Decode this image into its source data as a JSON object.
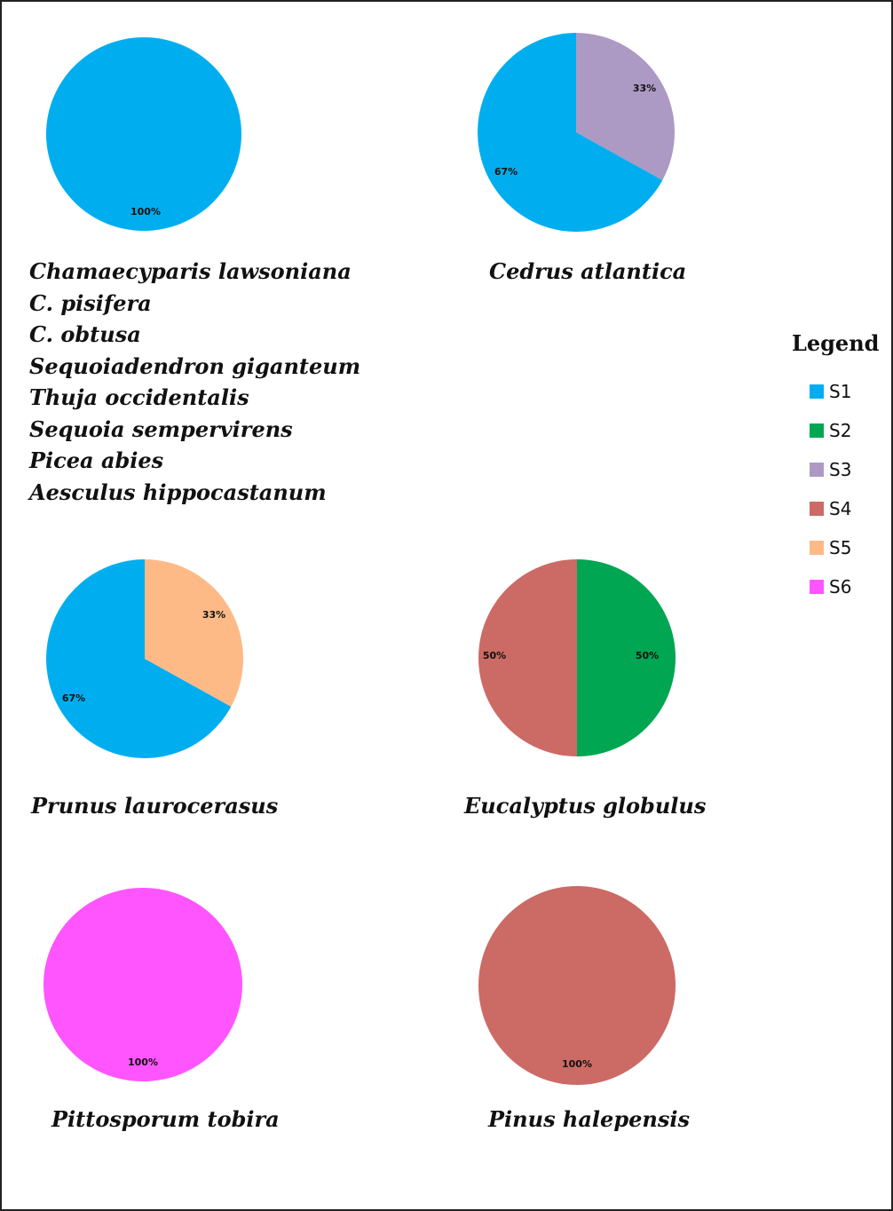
{
  "colors": {
    "S1": "#00AEEF",
    "S2": "#00A651",
    "S3": "#AC9AC4",
    "S4": "#CC6A66",
    "S5": "#FDBA87",
    "S6": "#FF55FF"
  },
  "legend": {
    "title": "Legend",
    "items": [
      {
        "label": "S1",
        "color": "#00AEEF"
      },
      {
        "label": "S2",
        "color": "#00A651"
      },
      {
        "label": "S3",
        "color": "#AC9AC4"
      },
      {
        "label": "S4",
        "color": "#CC6A66"
      },
      {
        "label": "S5",
        "color": "#FDBA87"
      },
      {
        "label": "S6",
        "color": "#FF55FF"
      }
    ]
  },
  "chart_data": [
    {
      "type": "pie",
      "species": [
        "Chamaecyparis lawsoniana",
        "C. pisifera",
        "C. obtusa",
        "Sequoiadendron giganteum",
        "Thuja occidentalis",
        "Sequoia sempervirens",
        "Picea  abies",
        "Aesculus hippocastanum"
      ],
      "slices": [
        {
          "category": "S1",
          "value": 100,
          "label": "100%"
        }
      ]
    },
    {
      "type": "pie",
      "species": [
        "Cedrus atlantica"
      ],
      "slices": [
        {
          "category": "S3",
          "value": 33,
          "label": "33%"
        },
        {
          "category": "S1",
          "value": 67,
          "label": "67%"
        }
      ]
    },
    {
      "type": "pie",
      "species": [
        "Prunus laurocerasus"
      ],
      "slices": [
        {
          "category": "S5",
          "value": 33,
          "label": "33%"
        },
        {
          "category": "S1",
          "value": 67,
          "label": "67%"
        }
      ]
    },
    {
      "type": "pie",
      "species": [
        "Eucalyptus globulus"
      ],
      "slices": [
        {
          "category": "S2",
          "value": 50,
          "label": "50%"
        },
        {
          "category": "S4",
          "value": 50,
          "label": "50%"
        }
      ]
    },
    {
      "type": "pie",
      "species": [
        "Pittosporum tobira"
      ],
      "slices": [
        {
          "category": "S6",
          "value": 100,
          "label": "100%"
        }
      ]
    },
    {
      "type": "pie",
      "species": [
        "Pinus halepensis"
      ],
      "slices": [
        {
          "category": "S4",
          "value": 100,
          "label": "100%"
        }
      ]
    }
  ]
}
